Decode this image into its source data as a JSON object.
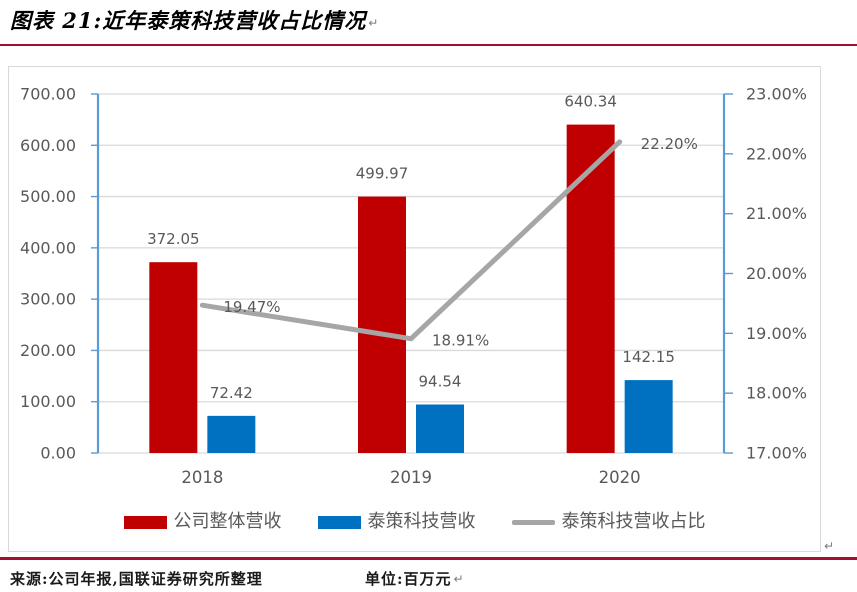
{
  "figure": {
    "title": "图表 21:近年泰策科技营收占比情况",
    "source_label": "来源:公司年报,国联证券研究所整理",
    "unit_label": "单位:百万元"
  },
  "marks": {
    "pilcrow": "↵"
  },
  "colors": {
    "rule_red": "#A50F2E",
    "axis_blue": "#5B9BD5",
    "grid_gray": "#D9D9D9",
    "tick_label_gray": "#595959",
    "data_label_gray": "#595959"
  },
  "chart_data": {
    "type": "bar",
    "combo": "bar+line",
    "categories": [
      "2018",
      "2019",
      "2020"
    ],
    "series": [
      {
        "name": "公司整体营收",
        "type": "bar",
        "axis": "left",
        "color": "#C00000",
        "values": [
          372.05,
          499.97,
          640.34
        ],
        "labels": [
          "372.05",
          "499.97",
          "640.34"
        ]
      },
      {
        "name": "泰策科技营收",
        "type": "bar",
        "axis": "left",
        "color": "#0070C0",
        "values": [
          72.42,
          94.54,
          142.15
        ],
        "labels": [
          "72.42",
          "94.54",
          "142.15"
        ]
      },
      {
        "name": "泰策科技营收占比",
        "type": "line",
        "axis": "right",
        "color": "#A6A6A6",
        "values": [
          19.47,
          18.91,
          22.2
        ],
        "labels": [
          "19.47%",
          "18.91%",
          "22.20%"
        ]
      }
    ],
    "left_axis": {
      "min": 0,
      "max": 700,
      "step": 100,
      "tick_labels": [
        "0.00",
        "100.00",
        "200.00",
        "300.00",
        "400.00",
        "500.00",
        "600.00",
        "700.00"
      ]
    },
    "right_axis": {
      "min": 17,
      "max": 23,
      "step": 1,
      "tick_labels": [
        "17.00%",
        "18.00%",
        "19.00%",
        "20.00%",
        "21.00%",
        "22.00%",
        "23.00%"
      ]
    },
    "grid": true,
    "legend_position": "bottom",
    "title": "近年泰策科技营收占比情况",
    "unit": "百万元"
  }
}
